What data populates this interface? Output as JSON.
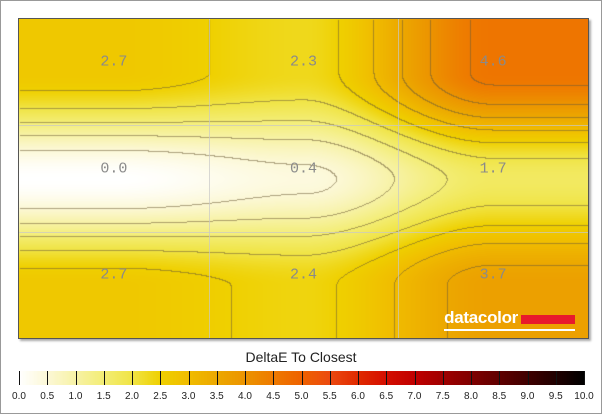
{
  "chart_data": {
    "type": "heatmap",
    "title": "DeltaE To Closest",
    "rows": 3,
    "cols": 3,
    "values": [
      [
        2.7,
        2.3,
        4.6
      ],
      [
        0.0,
        0.4,
        1.7
      ],
      [
        2.7,
        2.4,
        3.7
      ]
    ],
    "labels": [
      [
        "2.7",
        "2.3",
        "4.6"
      ],
      [
        "0.0",
        "0.4",
        "1.7"
      ],
      [
        "2.7",
        "2.4",
        "3.7"
      ]
    ],
    "colorbar": {
      "range": [
        0,
        10
      ],
      "ticks": [
        "0.0",
        "0.5",
        "1.0",
        "1.5",
        "2.0",
        "2.5",
        "3.0",
        "3.5",
        "4.0",
        "4.5",
        "5.0",
        "5.5",
        "6.0",
        "6.5",
        "7.0",
        "7.5",
        "8.0",
        "8.5",
        "9.0",
        "9.5",
        "10.0"
      ],
      "colors": [
        "#ffffff",
        "#fcf8d6",
        "#f7f2a6",
        "#f3ed74",
        "#f0e444",
        "#efd000",
        "#f0bc00",
        "#eca800",
        "#ec9400",
        "#ee7a00",
        "#ee6200",
        "#ec4a10",
        "#e02a00",
        "#d40e00",
        "#c00000",
        "#a00000",
        "#800000",
        "#600000",
        "#400000",
        "#200000",
        "#000000"
      ]
    },
    "grid": true,
    "contours": true
  },
  "logo": "datacolor"
}
